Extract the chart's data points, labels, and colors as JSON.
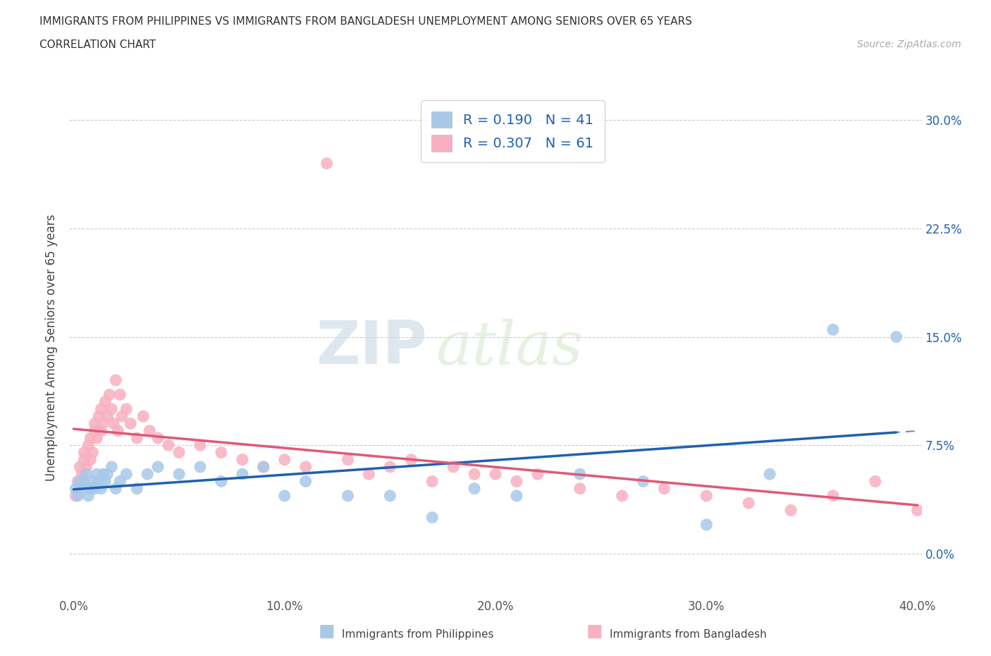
{
  "title_line1": "IMMIGRANTS FROM PHILIPPINES VS IMMIGRANTS FROM BANGLADESH UNEMPLOYMENT AMONG SENIORS OVER 65 YEARS",
  "title_line2": "CORRELATION CHART",
  "source": "Source: ZipAtlas.com",
  "ylabel": "Unemployment Among Seniors over 65 years",
  "xlim": [
    -0.002,
    0.402
  ],
  "ylim": [
    -0.03,
    0.315
  ],
  "xticks": [
    0.0,
    0.1,
    0.2,
    0.3,
    0.4
  ],
  "xtick_labels": [
    "0.0%",
    "10.0%",
    "20.0%",
    "30.0%",
    "40.0%"
  ],
  "ytick_positions": [
    0.0,
    0.075,
    0.15,
    0.225,
    0.3
  ],
  "ytick_labels_right": [
    "0.0%",
    "7.5%",
    "15.0%",
    "22.5%",
    "30.0%"
  ],
  "philippines_fill_color": "#a8c8e8",
  "philippines_line_color": "#2060b0",
  "bangladesh_fill_color": "#f8b0c0",
  "bangladesh_line_color": "#e05878",
  "R_philippines": 0.19,
  "N_philippines": 41,
  "R_bangladesh": 0.307,
  "N_bangladesh": 61,
  "watermark_zip": "ZIP",
  "watermark_atlas": "atlas",
  "phil_x": [
    0.001,
    0.002,
    0.003,
    0.004,
    0.005,
    0.006,
    0.007,
    0.008,
    0.009,
    0.01,
    0.011,
    0.012,
    0.013,
    0.014,
    0.015,
    0.016,
    0.018,
    0.02,
    0.022,
    0.025,
    0.03,
    0.035,
    0.04,
    0.05,
    0.06,
    0.07,
    0.08,
    0.09,
    0.1,
    0.11,
    0.13,
    0.15,
    0.17,
    0.19,
    0.21,
    0.24,
    0.27,
    0.3,
    0.33,
    0.36,
    0.39
  ],
  "phil_y": [
    0.045,
    0.04,
    0.05,
    0.045,
    0.05,
    0.055,
    0.04,
    0.045,
    0.05,
    0.045,
    0.055,
    0.05,
    0.045,
    0.055,
    0.05,
    0.055,
    0.06,
    0.045,
    0.05,
    0.055,
    0.045,
    0.055,
    0.06,
    0.055,
    0.06,
    0.05,
    0.055,
    0.06,
    0.04,
    0.05,
    0.04,
    0.04,
    0.025,
    0.045,
    0.04,
    0.055,
    0.05,
    0.02,
    0.055,
    0.155,
    0.15
  ],
  "bang_x": [
    0.001,
    0.002,
    0.003,
    0.004,
    0.005,
    0.005,
    0.006,
    0.007,
    0.008,
    0.008,
    0.009,
    0.01,
    0.01,
    0.011,
    0.012,
    0.013,
    0.013,
    0.014,
    0.015,
    0.016,
    0.017,
    0.018,
    0.019,
    0.02,
    0.021,
    0.022,
    0.023,
    0.025,
    0.027,
    0.03,
    0.033,
    0.036,
    0.04,
    0.045,
    0.05,
    0.06,
    0.07,
    0.08,
    0.09,
    0.1,
    0.11,
    0.12,
    0.13,
    0.14,
    0.15,
    0.16,
    0.17,
    0.18,
    0.19,
    0.2,
    0.21,
    0.22,
    0.24,
    0.26,
    0.28,
    0.3,
    0.32,
    0.34,
    0.36,
    0.38,
    0.4
  ],
  "bang_y": [
    0.04,
    0.05,
    0.06,
    0.055,
    0.065,
    0.07,
    0.06,
    0.075,
    0.065,
    0.08,
    0.07,
    0.085,
    0.09,
    0.08,
    0.095,
    0.085,
    0.1,
    0.09,
    0.105,
    0.095,
    0.11,
    0.1,
    0.09,
    0.12,
    0.085,
    0.11,
    0.095,
    0.1,
    0.09,
    0.08,
    0.095,
    0.085,
    0.08,
    0.075,
    0.07,
    0.075,
    0.07,
    0.065,
    0.06,
    0.065,
    0.06,
    0.27,
    0.065,
    0.055,
    0.06,
    0.065,
    0.05,
    0.06,
    0.055,
    0.055,
    0.05,
    0.055,
    0.045,
    0.04,
    0.045,
    0.04,
    0.035,
    0.03,
    0.04,
    0.05,
    0.03
  ]
}
